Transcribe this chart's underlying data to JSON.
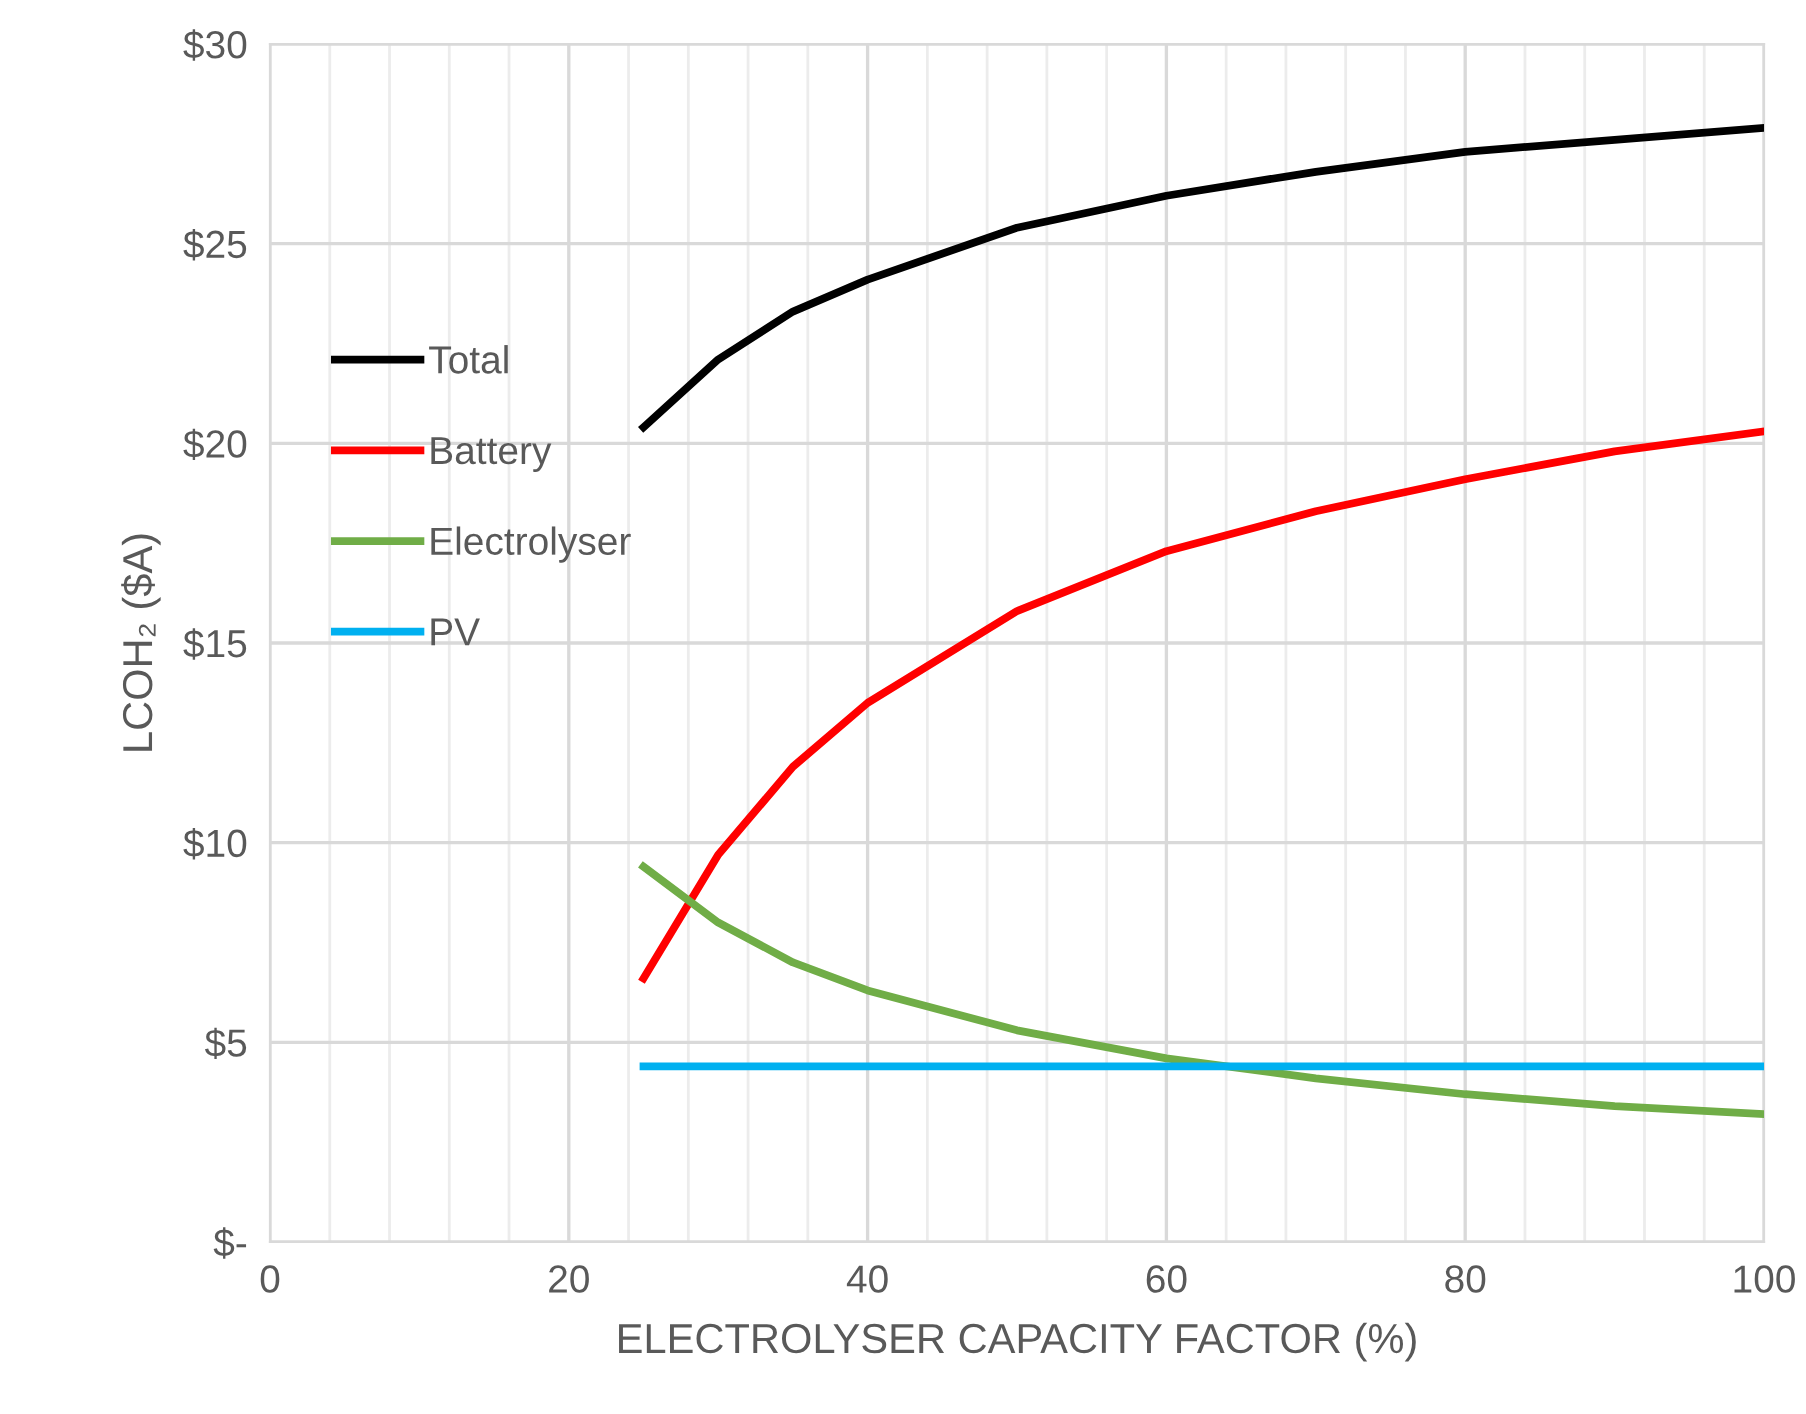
{
  "chart_data": {
    "type": "line",
    "xlabel": "ELECTROLYSER CAPACITY FACTOR (%)",
    "ylabel": "LCOH₂ ($A)",
    "x": [
      25,
      30,
      35,
      40,
      50,
      60,
      70,
      80,
      90,
      100
    ],
    "series": [
      {
        "name": "Total",
        "color": "#000000",
        "values": [
          20.4,
          22.1,
          23.3,
          24.1,
          25.4,
          26.2,
          26.8,
          27.3,
          27.6,
          27.9
        ]
      },
      {
        "name": "Battery",
        "color": "#ff0000",
        "values": [
          6.6,
          9.7,
          11.9,
          13.5,
          15.8,
          17.3,
          18.3,
          19.1,
          19.8,
          20.3
        ]
      },
      {
        "name": "Electrolyser",
        "color": "#70ad47",
        "values": [
          9.4,
          8.0,
          7.0,
          6.3,
          5.3,
          4.6,
          4.1,
          3.7,
          3.4,
          3.2
        ]
      },
      {
        "name": "PV",
        "color": "#00b0f0",
        "values": [
          4.4,
          4.4,
          4.4,
          4.4,
          4.4,
          4.4,
          4.4,
          4.4,
          4.4,
          4.4
        ]
      }
    ],
    "xlim": [
      0,
      100
    ],
    "xticks": [
      0,
      {
        "value": 4,
        "label": null
      },
      {
        "value": 8,
        "label": null
      },
      {
        "value": 12,
        "label": null
      },
      {
        "value": 16,
        "label": null
      },
      20,
      {
        "value": 24,
        "label": null
      },
      {
        "value": 28,
        "label": null
      },
      {
        "value": 32,
        "label": null
      },
      {
        "value": 36,
        "label": null
      },
      40,
      {
        "value": 44,
        "label": null
      },
      {
        "value": 48,
        "label": null
      },
      {
        "value": 52,
        "label": null
      },
      {
        "value": 56,
        "label": null
      },
      60,
      {
        "value": 64,
        "label": null
      },
      {
        "value": 68,
        "label": null
      },
      {
        "value": 72,
        "label": null
      },
      {
        "value": 76,
        "label": null
      },
      80,
      {
        "value": 84,
        "label": null
      },
      {
        "value": 88,
        "label": null
      },
      {
        "value": 92,
        "label": null
      },
      {
        "value": 96,
        "label": null
      },
      100
    ],
    "ylim": [
      0,
      30
    ],
    "yticks": [
      {
        "value": 0,
        "label": "$-"
      },
      {
        "value": 5,
        "label": "$5"
      },
      {
        "value": 10,
        "label": "$10"
      },
      {
        "value": 15,
        "label": "$15"
      },
      {
        "value": 20,
        "label": "$20"
      },
      {
        "value": 25,
        "label": "$25"
      },
      {
        "value": 30,
        "label": "$30"
      }
    ],
    "grid": true,
    "legend": "left",
    "marker": "none",
    "line_style": "solid"
  }
}
